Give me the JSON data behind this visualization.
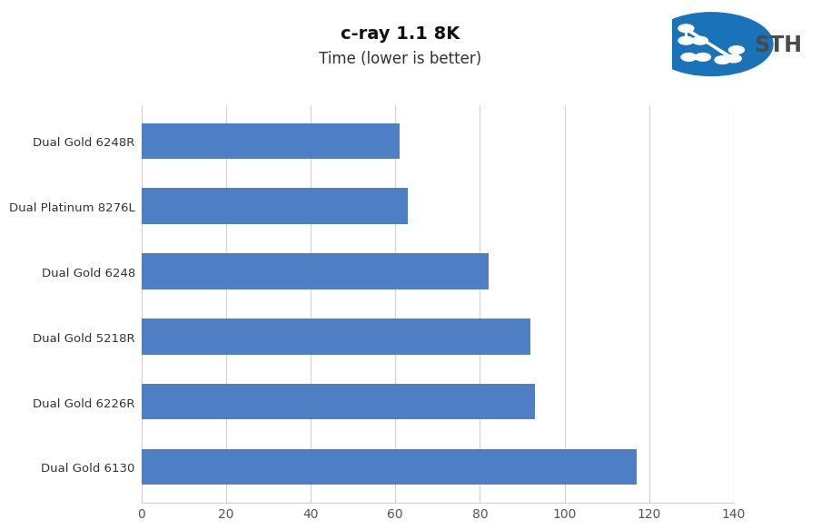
{
  "title": "c-ray 1.1 8K",
  "subtitle": "Time (lower is better)",
  "categories": [
    "Dual Gold 6130",
    "Dual Gold 6226R",
    "Dual Gold 5218R",
    "Dual Gold 6248",
    "Dual Platinum 8276L",
    "Dual Gold 6248R"
  ],
  "values": [
    117,
    93,
    92,
    82,
    63,
    61
  ],
  "bar_color": "#4e7fc4",
  "background_color": "#ffffff",
  "xlim": [
    0,
    140
  ],
  "xticks": [
    0,
    20,
    40,
    60,
    80,
    100,
    120,
    140
  ],
  "title_fontsize": 14,
  "subtitle_fontsize": 12,
  "label_fontsize": 9.5,
  "tick_fontsize": 10,
  "grid_color": "#d0d0d0",
  "logo_circle_color": "#1a72b8",
  "logo_text_color": "#4a4a4a",
  "logo_text": "STH"
}
